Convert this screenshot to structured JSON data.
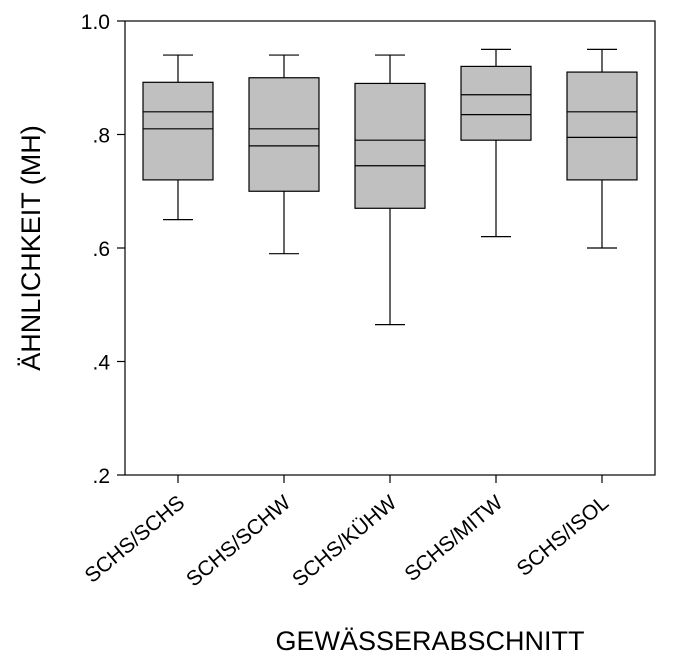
{
  "chart_data": {
    "type": "boxplot",
    "xlabel": "GEWÄSSERABSCHNITT",
    "ylabel": "ÄHNLICHKEIT (MH)",
    "ylim": [
      0.2,
      1.0
    ],
    "yticks": [
      {
        "value": 0.2,
        "label": ".2"
      },
      {
        "value": 0.4,
        "label": ".4"
      },
      {
        "value": 0.6,
        "label": ".6"
      },
      {
        "value": 0.8,
        "label": ".8"
      },
      {
        "value": 1.0,
        "label": "1.0"
      }
    ],
    "categories": [
      "SCHS/SCHS",
      "SCHS/SCHW",
      "SCHS/KÜHW",
      "SCHS/MITW",
      "SCHS/ISOL"
    ],
    "boxes": [
      {
        "whisker_low": 0.65,
        "q1": 0.72,
        "median": 0.81,
        "mean": 0.84,
        "q3": 0.892,
        "whisker_high": 0.94
      },
      {
        "whisker_low": 0.59,
        "q1": 0.7,
        "median": 0.78,
        "mean": 0.81,
        "q3": 0.9,
        "whisker_high": 0.94
      },
      {
        "whisker_low": 0.465,
        "q1": 0.67,
        "median": 0.745,
        "mean": 0.79,
        "q3": 0.89,
        "whisker_high": 0.94
      },
      {
        "whisker_low": 0.62,
        "q1": 0.79,
        "median": 0.835,
        "mean": 0.87,
        "q3": 0.92,
        "whisker_high": 0.95
      },
      {
        "whisker_low": 0.6,
        "q1": 0.72,
        "median": 0.795,
        "mean": 0.84,
        "q3": 0.91,
        "whisker_high": 0.95
      }
    ],
    "colors": {
      "box_fill": "#c0c0c0",
      "line": "#000000"
    },
    "grid": false,
    "legend": "none"
  }
}
